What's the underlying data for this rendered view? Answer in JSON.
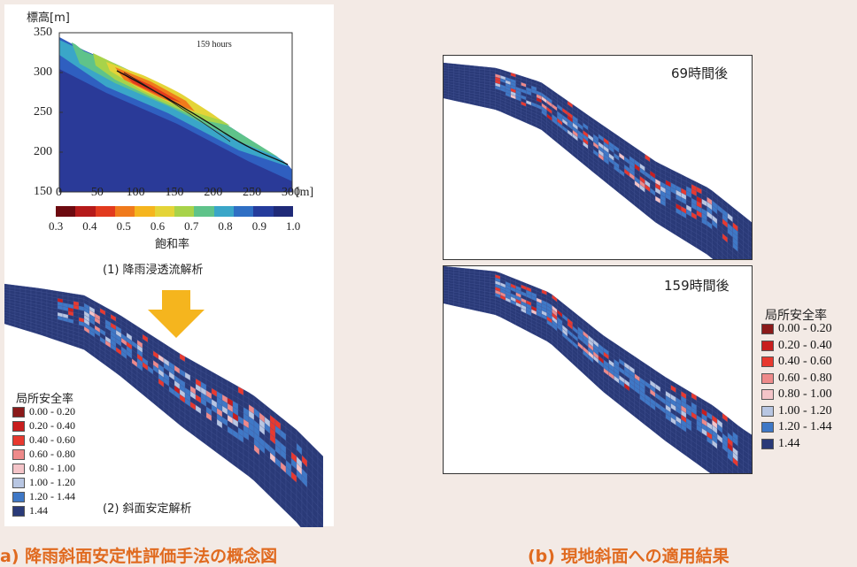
{
  "left": {
    "chart": {
      "ylabel": "標高[m]",
      "xunit": "[m]",
      "time_label": "159 hours",
      "xticks": [
        "0",
        "50",
        "100",
        "150",
        "200",
        "250",
        "300"
      ],
      "yticks": [
        "350",
        "300",
        "250",
        "200",
        "150"
      ],
      "colorbar_ticks": [
        "0.3",
        "0.4",
        "0.5",
        "0.6",
        "0.7",
        "0.8",
        "0.9",
        "1.0"
      ],
      "colorbar_label": "飽和率",
      "colorbar_colors": [
        "#6d0a10",
        "#b51a1a",
        "#e23a1e",
        "#f07a1c",
        "#f5b51e",
        "#e4d438",
        "#a8d34a",
        "#5fc38a",
        "#3aa6c8",
        "#2f6fc4",
        "#253c9c",
        "#1f2a78"
      ]
    },
    "step1_label": "(1) 降雨浸透流解析",
    "step2_label": "(2) 斜面安定解析",
    "arrow_color": "#f5b51e",
    "caption": "a) 降雨斜面安定性評価手法の概念図"
  },
  "right": {
    "panel_top_label": "69時間後",
    "panel_bottom_label": "159時間後",
    "caption": "(b) 現地斜面への適用結果"
  },
  "legend": {
    "title": "局所安全率",
    "items": [
      {
        "label": "0.00 - 0.20",
        "color": "#8b1a1a"
      },
      {
        "label": "0.20 - 0.40",
        "color": "#c81e1e"
      },
      {
        "label": "0.40 - 0.60",
        "color": "#e8392f"
      },
      {
        "label": "0.60 - 0.80",
        "color": "#ee8a8a"
      },
      {
        "label": "0.80 - 1.00",
        "color": "#f4c4c8"
      },
      {
        "label": "1.00 - 1.20",
        "color": "#b8c6e2"
      },
      {
        "label": "1.20 - 1.44",
        "color": "#3f78c6"
      },
      {
        "label": "1.44",
        "color": "#2a3a78"
      }
    ]
  }
}
